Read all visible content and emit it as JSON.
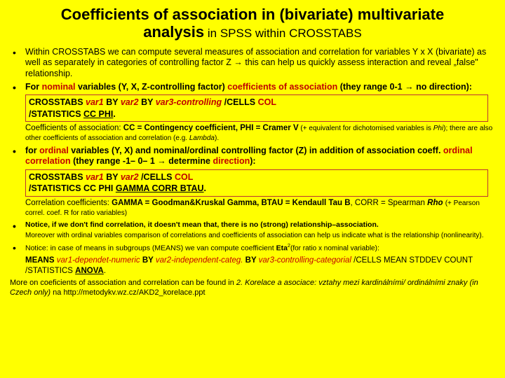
{
  "title": {
    "line1_bold": "Coefficients of association in (bivariate) multivariate",
    "line2_bold": "analysis",
    "line2_rest": " in SPSS within CROSSTABS"
  },
  "bullets": {
    "b1": "Within CROSSTABS we can compute several measures of association and correlation for variables Y x X (bivariate) as well as separately in categories of controlling factor Z → this can help us quickly assess interaction and reveal „false\" relationship.",
    "b2_a": "For ",
    "b2_nominal": "nominal",
    "b2_b": " variables (Y, X, Z-controlling factor) ",
    "b2_coef": "coefficients of association",
    "b2_c": " (they range 0-1 → no direction):",
    "box1_a": "CROSSTABS ",
    "box1_v1": "var1",
    "box1_by1": " BY ",
    "box1_v2": "var2",
    "box1_by2": " BY ",
    "box1_v3": "var3-controlling",
    "box1_cells": " /CELLS ",
    "box1_col": "COL",
    "box1_stats": "/STATISTICS ",
    "box1_cc": "CC  PHI",
    "sub1_a": "Coefficients of association: ",
    "sub1_cc": "CC = Contingency coefficient, PHI = Cramer V",
    "sub1_b": " (+ equivalent for dichotomised variables is ",
    "sub1_phi": "Phi",
    "sub1_c": "); there are also other coefficients of association and correlation (e.g. ",
    "sub1_lam": "Lambda",
    "sub1_d": ").",
    "b3_a": "for ",
    "b3_ord": "ordinal",
    "b3_b": " variables (Y, X) and nominal/ordinal controlling factor (Z) in addition of association coeff. ",
    "b3_oc": "ordinal correlation",
    "b3_c": " (they range -1– 0– 1 → determine ",
    "b3_dir": "direction",
    "b3_d": "):",
    "box2_a": "CROSSTABS ",
    "box2_v1": "var1",
    "box2_by1": " BY ",
    "box2_v2": "var2",
    "box2_cells": " /CELLS ",
    "box2_col": "COL",
    "box2_stats": "/STATISTICS CC PHI ",
    "box2_u": "GAMMA  CORR  BTAU",
    "sub2_a": "Correlation coefficients: ",
    "sub2_g": "GAMMA = Goodman&Kruskal Gamma, BTAU = Kendaull Tau B",
    "sub2_b": ", CORR = Spearman ",
    "sub2_rho": "Rho",
    "sub2_c": " (+ Pearson correl. coef. R for ratio variables)",
    "b4": "Notice, if we don't find correlation, it doesn't mean that, there is no (strong) relationship–association.",
    "sub3": "Moreover with ordinal variables comparison of correlations and coefficients of association can help us indicate what is the relationship (nonlinearity).",
    "b5_a": "Notice: in case of means in subgroups (MEANS) we van compute coefficient ",
    "b5_eta": "Eta",
    "b5_b": "(for ratio x nominal variable)",
    "b5_c": ":",
    "sub4_a": "MEANS ",
    "sub4_v1": "var1-dependet-numeric",
    "sub4_by1": " BY ",
    "sub4_v2": "var2-independent-categ.",
    "sub4_by2": " BY ",
    "sub4_v3": "var3-controlling-categorial",
    "sub4_b": " /CELLS MEAN STDDEV COUNT /STATISTICS ",
    "sub4_an": "ANOVA"
  },
  "footer": {
    "a": "More on coeficients of association and correlation can be found in ",
    "b": "2. Korelace a asociace: vztahy mezi kardinálními/ ordinálními znaky (in Czech only)",
    "c": " na ",
    "url": "http://metodykv.wz.cz/AKD2_korelace.ppt"
  }
}
